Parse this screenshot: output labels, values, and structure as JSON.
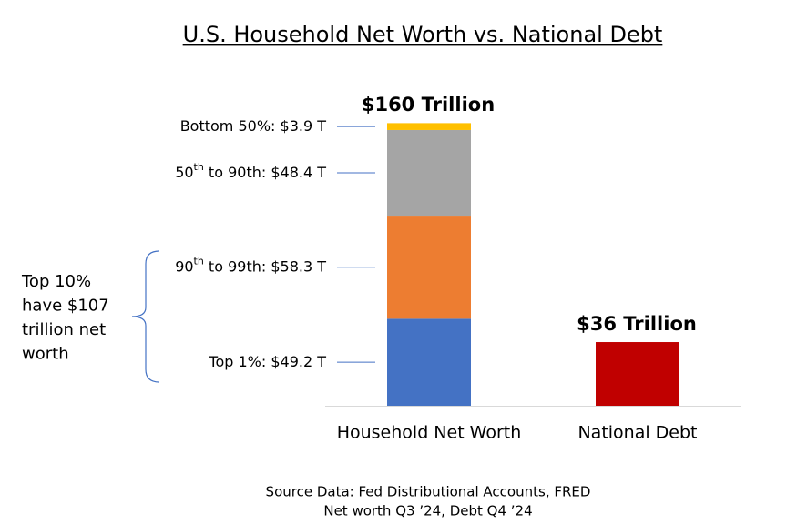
{
  "chart_data": {
    "type": "stacked_bar",
    "title": "U.S. Household Net Worth vs. National Debt",
    "categories": [
      "Household Net Worth",
      "National Debt"
    ],
    "series": [
      {
        "color": "#4472c4",
        "values": [
          49.2,
          null
        ],
        "label": [
          {
            "text": "Top 1%: $49.2 T"
          }
        ]
      },
      {
        "color": "#ed7d31",
        "values": [
          58.3,
          null
        ],
        "label": [
          {
            "text": "90"
          },
          {
            "text": "th",
            "sup": true
          },
          {
            "text": " to 99th: $58.3 T"
          }
        ]
      },
      {
        "color": "#a5a5a5",
        "values": [
          48.4,
          null
        ],
        "label": [
          {
            "text": "50"
          },
          {
            "text": "th",
            "sup": true
          },
          {
            "text": " to 90th: $48.4 T"
          }
        ]
      },
      {
        "color": "#ffc000",
        "values": [
          3.9,
          null
        ],
        "label": [
          {
            "text": "Bottom 50%: $3.9 T"
          }
        ]
      },
      {
        "color": "#c00000",
        "values": [
          null,
          36
        ]
      }
    ],
    "totals": [
      {
        "value": 160,
        "label": "$160 Trillion"
      },
      {
        "value": 36,
        "label": "$36 Trillion"
      }
    ],
    "ylim": [
      0,
      160
    ],
    "annotation": {
      "value": 107,
      "lines": [
        "Top 10%",
        "have $107",
        "trillion net",
        "worth"
      ]
    },
    "source": [
      "Source Data:  Fed Distributional Accounts, FRED",
      "Net worth Q3 ’24, Debt Q4 ’24"
    ]
  }
}
